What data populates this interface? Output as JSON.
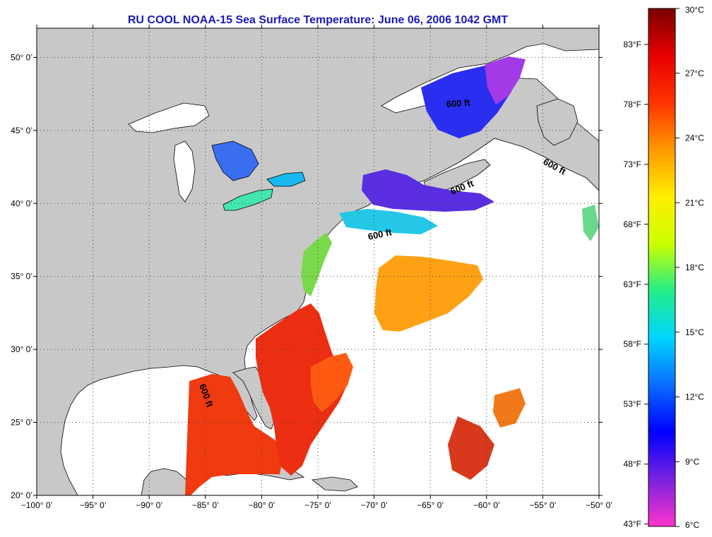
{
  "title": "RU COOL  NOAA-15  Sea Surface Temperature:  June 06, 2006 1042 GMT",
  "map": {
    "lon_range": [
      -100,
      -50
    ],
    "lat_range": [
      20,
      52
    ],
    "lon_ticks": [
      "−100° 0’",
      "−95° 0’",
      "−90° 0’",
      "−85° 0’",
      "−80° 0’",
      "−75° 0’",
      "−70° 0’",
      "−65° 0’",
      "−60° 0’",
      "−55° 0’",
      "−50° 0’"
    ],
    "lon_tick_values": [
      -100,
      -95,
      -90,
      -85,
      -80,
      -75,
      -70,
      -65,
      -60,
      -55,
      -50
    ],
    "lat_ticks": [
      "20° 0’",
      "25° 0’",
      "30° 0’",
      "35° 0’",
      "40° 0’",
      "45° 0’",
      "50° 0’"
    ],
    "lat_tick_values": [
      20,
      25,
      30,
      35,
      40,
      45,
      50
    ],
    "grid": "dotted",
    "isobath_labels": [
      "600 ft",
      "600 ft",
      "600 ft",
      "600 ft",
      "600 ft"
    ],
    "colors": {
      "land": "#c8c8c8",
      "cloud": "#ffffff",
      "coast": "#000000"
    }
  },
  "colorbar": {
    "celsius_range": [
      6,
      30
    ],
    "celsius_labels": [
      "30°C",
      "27°C",
      "24°C",
      "21°C",
      "18°C",
      "15°C",
      "12°C",
      "9°C",
      "6°C"
    ],
    "celsius_values": [
      30,
      27,
      24,
      21,
      18,
      15,
      12,
      9,
      6
    ],
    "fahrenheit_labels": [
      "83°F",
      "78°F",
      "73°F",
      "68°F",
      "63°F",
      "58°F",
      "53°F",
      "48°F",
      "43°F"
    ],
    "fahrenheit_values": [
      83,
      78,
      73,
      68,
      63,
      58,
      53,
      48,
      43
    ],
    "stops": [
      "#ff33cc",
      "#7a22e0",
      "#0000ff",
      "#0a6cff",
      "#00d5ff",
      "#22ee88",
      "#ccff00",
      "#ffee00",
      "#ff9900",
      "#ff3300",
      "#e80000",
      "#7a0000"
    ]
  }
}
